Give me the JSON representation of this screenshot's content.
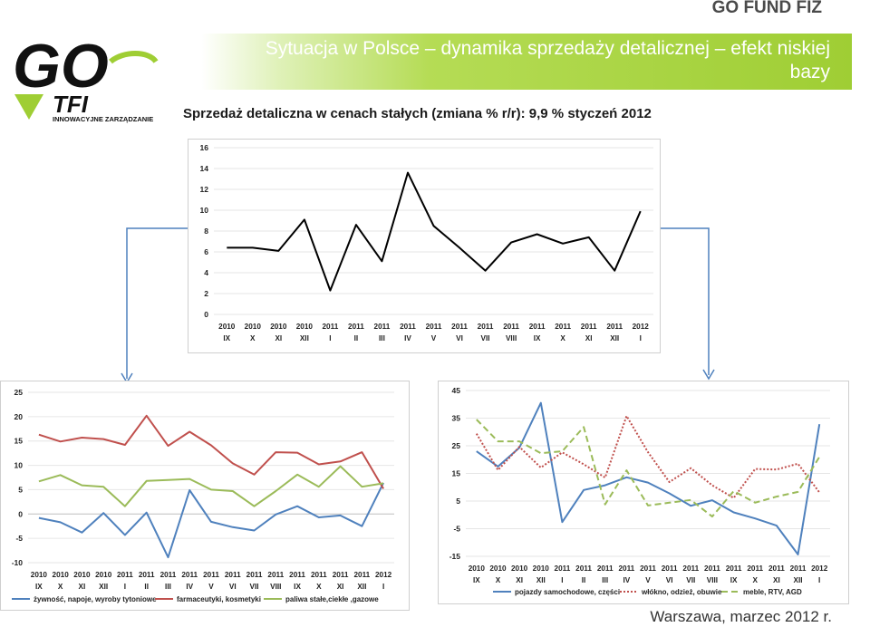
{
  "header": {
    "fund_name": "GO FUND FIZ",
    "title": "Sytuacja w Polsce – dynamika sprzedaży detalicznej – efekt niskiej bazy",
    "subtitle": "Sprzedaż detaliczna w cenach stałych (zmiana % r/r): 9,9 % styczeń 2012",
    "logo_text_main": "GO",
    "logo_text_tfi": "TFI",
    "logo_tagline": "INNOWACYJNE ZARZĄDZANIE"
  },
  "footer": {
    "place_date": "Warszawa, marzec 2012 r."
  },
  "colors": {
    "banner": "#9fce34",
    "series_food": "#4f81bd",
    "series_pharma": "#c0504d",
    "series_fuel": "#9bbb59",
    "series_cars": "#4f81bd",
    "series_textile": "#c0504d",
    "series_furniture": "#9bbb59",
    "arrow": "#4f81bd"
  },
  "chart_data": [
    {
      "type": "line",
      "x_years": [
        "2010",
        "2010",
        "2010",
        "2010",
        "2011",
        "2011",
        "2011",
        "2011",
        "2011",
        "2011",
        "2011",
        "2011",
        "2011",
        "2011",
        "2011",
        "2011",
        "2012"
      ],
      "x_months": [
        "IX",
        "X",
        "XI",
        "XII",
        "I",
        "II",
        "III",
        "IV",
        "V",
        "VI",
        "VII",
        "VIII",
        "IX",
        "X",
        "XI",
        "XII",
        "I"
      ],
      "ylim": [
        0,
        16
      ],
      "yticks": [
        0,
        2,
        4,
        6,
        8,
        10,
        12,
        14,
        16
      ],
      "series": [
        {
          "values": [
            6.4,
            6.4,
            6.1,
            9.1,
            2.3,
            8.6,
            5.1,
            13.6,
            8.5,
            6.4,
            4.2,
            6.9,
            7.7,
            6.8,
            7.4,
            4.2,
            9.9
          ]
        }
      ]
    },
    {
      "type": "line",
      "x_years": [
        "2010",
        "2010",
        "2010",
        "2010",
        "2011",
        "2011",
        "2011",
        "2011",
        "2011",
        "2011",
        "2011",
        "2011",
        "2011",
        "2011",
        "2011",
        "2011",
        "2012"
      ],
      "x_months": [
        "IX",
        "X",
        "XI",
        "XII",
        "I",
        "II",
        "III",
        "IV",
        "V",
        "VI",
        "VII",
        "VIII",
        "IX",
        "X",
        "XI",
        "XII",
        "I"
      ],
      "ylim": [
        -10,
        25
      ],
      "yticks": [
        -10,
        -5,
        0,
        5,
        10,
        15,
        20,
        25
      ],
      "series": [
        {
          "name": "żywność, napoje, wyroby tytoniowe",
          "values": [
            -0.8,
            -1.7,
            -3.8,
            0.2,
            -4.3,
            0.3,
            -8.9,
            4.9,
            -1.6,
            -2.7,
            -3.4,
            -0.1,
            1.6,
            -0.7,
            -0.3,
            -2.5,
            6.4
          ]
        },
        {
          "name": "farmaceutyki, kosmetyki",
          "values": [
            16.3,
            14.9,
            15.7,
            15.4,
            14.2,
            20.2,
            14.0,
            16.9,
            14.1,
            10.4,
            8.1,
            12.7,
            12.6,
            10.2,
            10.8,
            12.7,
            5.2
          ]
        },
        {
          "name": "paliwa stałe,ciekłe ,gazowe",
          "values": [
            6.7,
            8.0,
            5.9,
            5.6,
            1.6,
            6.8,
            7.0,
            7.2,
            5.0,
            4.7,
            1.6,
            4.7,
            8.1,
            5.6,
            9.8,
            5.6,
            6.3
          ]
        }
      ]
    },
    {
      "type": "line",
      "x_years": [
        "2010",
        "2010",
        "2010",
        "2010",
        "2011",
        "2011",
        "2011",
        "2011",
        "2011",
        "2011",
        "2011",
        "2011",
        "2011",
        "2011",
        "2011",
        "2011",
        "2012"
      ],
      "x_months": [
        "IX",
        "X",
        "XI",
        "XII",
        "I",
        "II",
        "III",
        "IV",
        "V",
        "VI",
        "VII",
        "VIII",
        "IX",
        "X",
        "XI",
        "XII",
        "I"
      ],
      "ylim": [
        -15,
        45
      ],
      "yticks": [
        -15,
        -5,
        5,
        15,
        25,
        35,
        45
      ],
      "series": [
        {
          "name": "pojazdy samochodowe, części",
          "values": [
            23.0,
            17.5,
            24.3,
            40.5,
            -2.6,
            9.0,
            10.7,
            13.6,
            11.7,
            7.8,
            3.3,
            5.3,
            0.9,
            -1.3,
            -3.9,
            -14.3,
            32.8
          ]
        },
        {
          "name": "włókno, odzież, obuwie",
          "values": [
            29.4,
            16.2,
            24.6,
            17.1,
            22.6,
            18.3,
            13.5,
            35.8,
            22.7,
            11.9,
            16.9,
            10.7,
            6.1,
            16.6,
            16.4,
            18.5,
            8.1
          ]
        },
        {
          "name": "meble, RTV, AGD",
          "values": [
            34.5,
            26.6,
            26.6,
            22.3,
            23.0,
            31.8,
            3.8,
            16.1,
            3.4,
            4.4,
            5.4,
            -0.6,
            8.6,
            4.4,
            6.6,
            8.3,
            21.0
          ]
        }
      ]
    }
  ]
}
